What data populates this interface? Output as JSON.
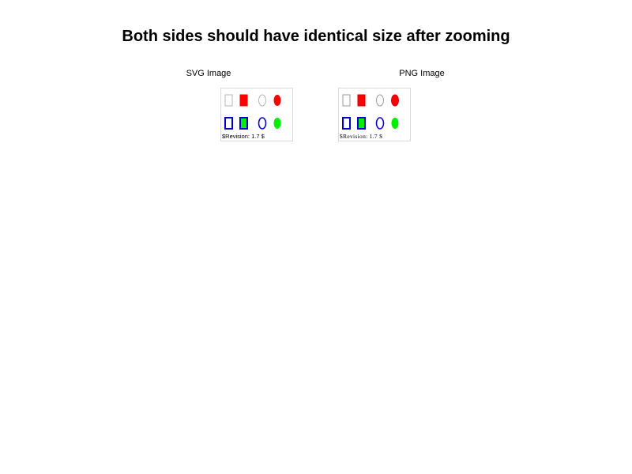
{
  "page": {
    "title": "Both sides should have identical size after zooming"
  },
  "images": [
    {
      "caption": "SVG Image",
      "revision": "$Revision: 1.7 $"
    },
    {
      "caption": "PNG Image",
      "revision": "$Revision: 1.7 $"
    }
  ],
  "colors": {
    "outline_gray": "#b4b4b4",
    "red": "#ff0000",
    "blue": "#0000cc",
    "green": "#00ee00"
  }
}
